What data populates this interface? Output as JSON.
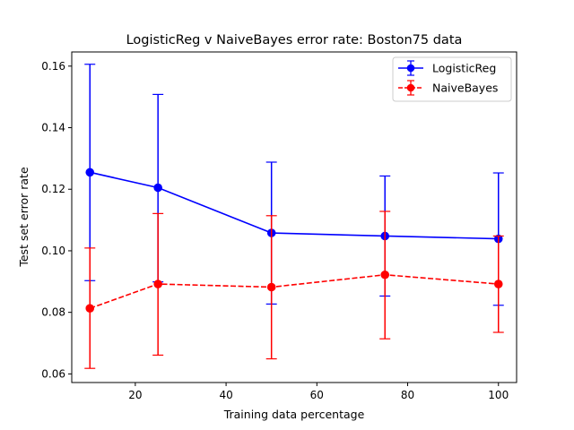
{
  "chart_data": {
    "type": "line",
    "title": "LogisticReg v NaiveBayes error rate: Boston75 data",
    "xlabel": "Training data percentage",
    "ylabel": "Test set error rate",
    "xlim": [
      6,
      104
    ],
    "ylim": [
      0.0572,
      0.1646
    ],
    "xticks": [
      20,
      40,
      60,
      80,
      100
    ],
    "yticks": [
      0.06,
      0.08,
      0.1,
      0.12,
      0.14,
      0.16
    ],
    "xtick_labels": [
      "20",
      "40",
      "60",
      "80",
      "100"
    ],
    "ytick_labels": [
      "0.06",
      "0.08",
      "0.10",
      "0.12",
      "0.14",
      "0.16"
    ],
    "grid": false,
    "legend_position": "top-right",
    "x": [
      10,
      25,
      50,
      75,
      100
    ],
    "series": [
      {
        "name": "LogisticReg",
        "color": "#0000ff",
        "linestyle": "solid",
        "values": [
          0.1255,
          0.1205,
          0.1058,
          0.1048,
          0.1039
        ],
        "err_low": [
          0.0903,
          0.0899,
          0.0827,
          0.0853,
          0.0823
        ],
        "err_high": [
          0.1606,
          0.1508,
          0.1288,
          0.1243,
          0.1253
        ]
      },
      {
        "name": "NaiveBayes",
        "color": "#ff0000",
        "linestyle": "dashed",
        "values": [
          0.0813,
          0.0892,
          0.0882,
          0.0922,
          0.0892
        ],
        "err_low": [
          0.0618,
          0.0661,
          0.0649,
          0.0714,
          0.0735
        ],
        "err_high": [
          0.1009,
          0.1121,
          0.1114,
          0.1128,
          0.1048
        ]
      }
    ]
  }
}
